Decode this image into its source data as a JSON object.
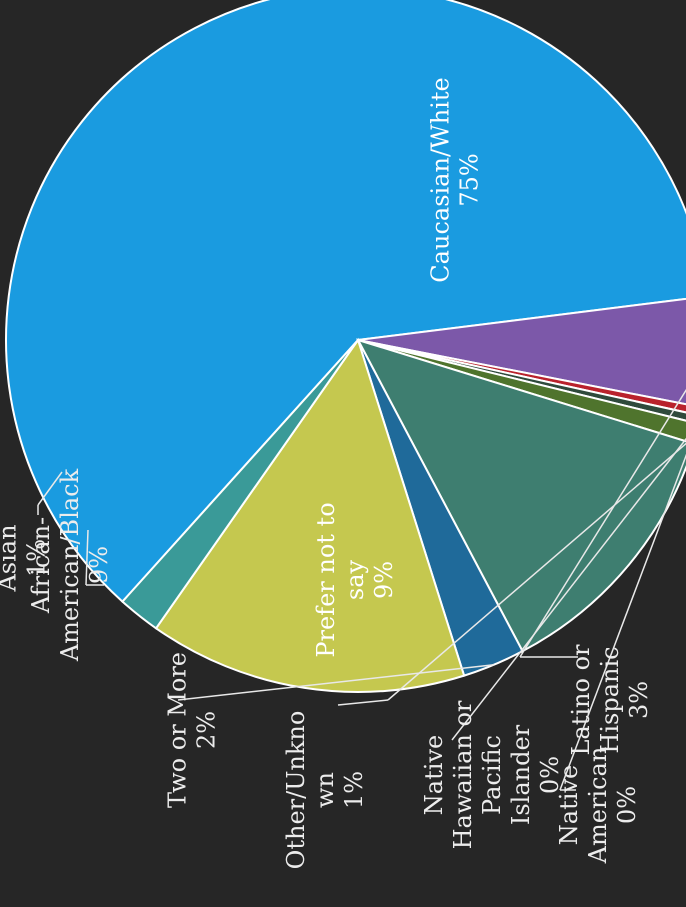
{
  "chart_data": {
    "type": "pie",
    "title": "",
    "series": [
      {
        "values": [
          75,
          3,
          0,
          0,
          1,
          9,
          2,
          9,
          1
        ],
        "labels": [
          [
            "Caucasian/White",
            "75%"
          ],
          [
            "Latino or",
            "Hispanic",
            "3%"
          ],
          [
            "Native",
            "American",
            "0%"
          ],
          [
            "Native",
            "Hawaiian or",
            "Pacific",
            "Islander",
            "0%"
          ],
          [
            "Other/Unkno",
            "wn",
            "1%"
          ],
          [
            "Prefer not to",
            "say",
            "9%"
          ],
          [
            "Two or More",
            "2%"
          ],
          [
            "African-",
            "American/Black",
            "9%"
          ],
          [
            "Asian",
            "1%"
          ]
        ],
        "colors": [
          "#1a9be0",
          "#7c58a9",
          "#b9222c",
          "#2f4a3c",
          "#4f742d",
          "#3e7e70",
          "#1f6a9a",
          "#c5c84f",
          "#3a9a98"
        ]
      }
    ]
  }
}
